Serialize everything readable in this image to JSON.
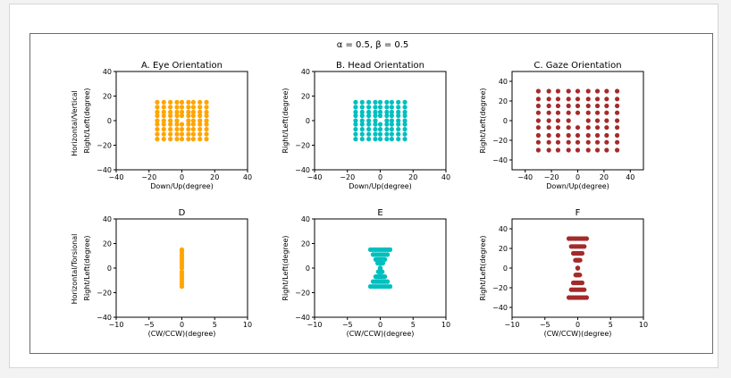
{
  "figure": {
    "suptitle": "α = 0.5, β = 0.5",
    "row_labels": [
      "Horizontal/Vertical",
      "Horizontal/Torsional"
    ]
  },
  "chart_data": [
    {
      "type": "scatter",
      "title": "A. Eye Orientation",
      "xlabel": "Down/Up(degree)",
      "ylabel": "Right/Left(degree)",
      "xlim": [
        -40,
        40
      ],
      "ylim": [
        -40,
        40
      ],
      "xticks": [
        -40,
        -20,
        0,
        20,
        40
      ],
      "yticks": [
        -40,
        -20,
        0,
        20,
        40
      ],
      "color": "#FFA500",
      "pattern": "grid",
      "grid_xs": [
        -15,
        -11,
        -7,
        -3,
        0,
        4,
        7,
        11,
        15
      ],
      "grid_ys": [
        -15,
        -11,
        -7,
        -3,
        0,
        4,
        7,
        11,
        15
      ],
      "hole": [
        0,
        0
      ]
    },
    {
      "type": "scatter",
      "title": "B. Head Orientation",
      "xlabel": "Down/Up(degree)",
      "ylabel": "Right/Left(degree)",
      "xlim": [
        -40,
        40
      ],
      "ylim": [
        -40,
        40
      ],
      "xticks": [
        -40,
        -20,
        0,
        20,
        40
      ],
      "yticks": [
        -40,
        -20,
        0,
        20,
        40
      ],
      "color": "#00BFBF",
      "pattern": "grid",
      "grid_xs": [
        -15,
        -11,
        -7,
        -3,
        0,
        4,
        7,
        11,
        15
      ],
      "grid_ys": [
        -15,
        -11,
        -7,
        -3,
        0,
        4,
        7,
        11,
        15
      ],
      "hole": [
        0,
        0
      ]
    },
    {
      "type": "scatter",
      "title": "C. Gaze Orientation",
      "xlabel": "Down/Up(degree)",
      "ylabel": "Right/Left(degree)",
      "xlim": [
        -50,
        50
      ],
      "ylim": [
        -50,
        50
      ],
      "xticks": [
        -40,
        -20,
        0,
        20,
        40
      ],
      "yticks": [
        -40,
        -20,
        0,
        20,
        40
      ],
      "color": "#A52A2A",
      "pattern": "grid",
      "grid_xs": [
        -30,
        -22,
        -15,
        -7,
        0,
        8,
        15,
        22,
        30
      ],
      "grid_ys": [
        -30,
        -22,
        -15,
        -7,
        0,
        8,
        15,
        22,
        30
      ],
      "hole": [
        0,
        0
      ]
    },
    {
      "type": "scatter",
      "title": "D",
      "xlabel": "(CW/CCW)(degree)",
      "ylabel": "Right/Left(degree)",
      "xlim": [
        -10,
        10
      ],
      "ylim": [
        -40,
        40
      ],
      "xticks": [
        -10,
        -5,
        0,
        5,
        10
      ],
      "yticks": [
        -40,
        -20,
        0,
        20,
        40
      ],
      "color": "#FFA500",
      "pattern": "column",
      "col_ys": [
        -15,
        -13,
        -11,
        -9,
        -7,
        -5,
        -3,
        0,
        2,
        4,
        6,
        8,
        10,
        12,
        14,
        15
      ]
    },
    {
      "type": "scatter",
      "title": "E",
      "xlabel": "(CW/CCW)(degree)",
      "ylabel": "Right/Left(degree)",
      "xlim": [
        -10,
        10
      ],
      "ylim": [
        -40,
        40
      ],
      "xticks": [
        -10,
        -5,
        0,
        5,
        10
      ],
      "yticks": [
        -40,
        -20,
        0,
        20,
        40
      ],
      "color": "#00BFBF",
      "pattern": "bowtie",
      "ys": [
        -15,
        -11,
        -7,
        -3,
        0,
        4,
        7,
        11,
        15
      ],
      "count": 9,
      "width_scale": 0.1
    },
    {
      "type": "scatter",
      "title": "F",
      "xlabel": "(CW/CCW)(degree)",
      "ylabel": "Right/Left(degree)",
      "xlim": [
        -10,
        10
      ],
      "ylim": [
        -50,
        50
      ],
      "xticks": [
        -10,
        -5,
        0,
        5,
        10
      ],
      "yticks": [
        -40,
        -20,
        0,
        20,
        40
      ],
      "color": "#A52A2A",
      "pattern": "bowtie",
      "ys": [
        -30,
        -22,
        -15,
        -7,
        0,
        8,
        15,
        22,
        30
      ],
      "count": 9,
      "width_scale": 0.045
    }
  ]
}
